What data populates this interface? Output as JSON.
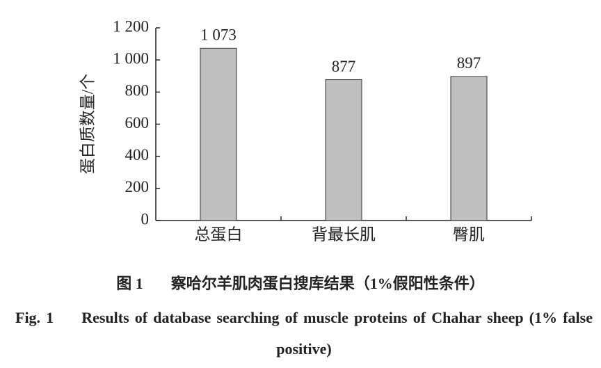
{
  "chart_data": {
    "type": "bar",
    "categories": [
      "总蛋白",
      "背最长肌",
      "臀肌"
    ],
    "values": [
      1073,
      877,
      897
    ],
    "value_labels": [
      "1 073",
      "877",
      "897"
    ],
    "color": "#c0c0c0",
    "y_label": "蛋白质数量/个",
    "ylim": [
      0,
      1200
    ],
    "yticks": [
      0,
      200,
      400,
      600,
      800,
      {
        "value": 1000,
        "label": "1 000"
      },
      {
        "value": 1200,
        "label": "1 200"
      }
    ]
  },
  "caption": {
    "cn_label": "图 1",
    "cn_text": "察哈尔羊肌肉蛋白搜库结果（1%假阳性条件）",
    "en_label": "Fig. 1",
    "en_text": "Results of database searching of muscle proteins of Chahar sheep (1% false positive)"
  }
}
